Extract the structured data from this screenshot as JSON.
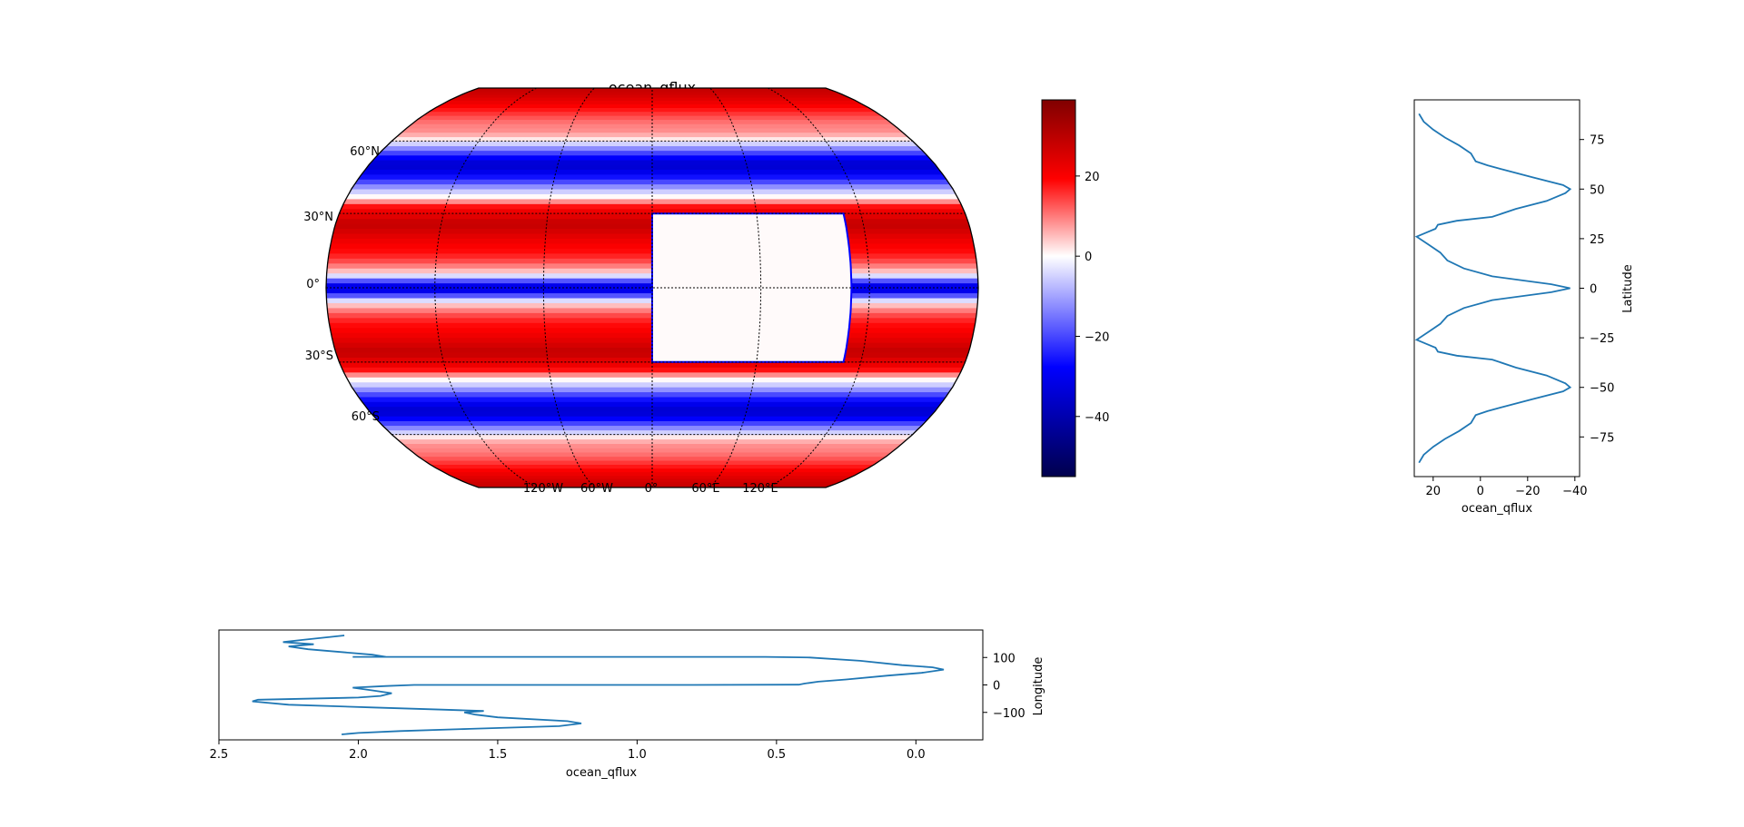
{
  "chart_data": [
    {
      "type": "heatmap",
      "title": "ocean_qflux",
      "projection": "robinson",
      "colormap": "seismic",
      "lat_ticks": [
        "60°N",
        "30°N",
        "0°",
        "30°S",
        "60°S"
      ],
      "lat_tick_values": [
        60,
        30,
        0,
        -30,
        -60
      ],
      "lon_ticks": [
        "120°W",
        "60°W",
        "0°",
        "60°E",
        "120°E"
      ],
      "lon_tick_values": [
        -120,
        -60,
        0,
        60,
        120
      ],
      "field_by_latitude": {
        "lat": [
          -88,
          -84,
          -80,
          -76,
          -72,
          -68,
          -64,
          -62,
          -60,
          -56,
          -52,
          -50,
          -48,
          -44,
          -40,
          -36,
          -34,
          -32,
          -30,
          -28,
          -26,
          -22,
          -18,
          -14,
          -10,
          -6,
          -2,
          0,
          2,
          6,
          10,
          14,
          18,
          22,
          26,
          28,
          30,
          32,
          34,
          36,
          40,
          44,
          48,
          50,
          52,
          56,
          60,
          62,
          64,
          68,
          72,
          76,
          80,
          84,
          88
        ],
        "value": [
          26,
          24,
          20,
          15,
          9,
          4,
          2,
          -3,
          -9,
          -22,
          -35,
          -38,
          -36,
          -28,
          -15,
          -5,
          10,
          18,
          19,
          23,
          27,
          22,
          17,
          14,
          7,
          -5,
          -30,
          -38,
          -30,
          -5,
          7,
          14,
          17,
          22,
          27,
          23,
          19,
          18,
          10,
          -5,
          -15,
          -28,
          -36,
          -38,
          -35,
          -22,
          -9,
          -3,
          2,
          4,
          9,
          15,
          20,
          24,
          26
        ]
      },
      "masked_region": {
        "lon": [
          0,
          110
        ],
        "lat": [
          -30,
          30
        ]
      },
      "colorbar": {
        "ticks": [
          20,
          0,
          -20,
          -40
        ],
        "range": [
          -55,
          39
        ]
      }
    },
    {
      "type": "line",
      "xlabel": "ocean_qflux",
      "ylabel": "Latitude",
      "x_axis_inverted": true,
      "xticks": [
        20,
        0,
        -20,
        -40
      ],
      "yticks": [
        75,
        50,
        25,
        0,
        -25,
        -50,
        -75
      ],
      "xlim": [
        28,
        -42
      ],
      "ylim": [
        -95,
        95
      ]
    },
    {
      "type": "line",
      "xlabel": "ocean_qflux",
      "ylabel": "Longitude",
      "x_axis_inverted": true,
      "xticks": [
        "2.5",
        "2.0",
        "1.5",
        "1.0",
        "0.5",
        "0.0"
      ],
      "xtick_values": [
        2.5,
        2.0,
        1.5,
        1.0,
        0.5,
        0.0
      ],
      "yticks": [
        100,
        0,
        -100
      ],
      "xlim": [
        2.5,
        -0.24
      ],
      "ylim": [
        -200,
        200
      ],
      "x": [
        2.06,
        2.0,
        1.85,
        1.6,
        1.28,
        1.2,
        1.25,
        1.5,
        1.58,
        1.62,
        1.55,
        1.7,
        1.95,
        2.25,
        2.38,
        2.36,
        2.0,
        1.92,
        1.88,
        1.95,
        2.02,
        1.9,
        1.8,
        1.0,
        0.8,
        0.42,
        0.4,
        0.35,
        0.25,
        0.1,
        -0.02,
        -0.1,
        -0.06,
        0.05,
        0.2,
        0.38,
        0.54,
        1.0,
        2.02,
        1.9,
        1.95,
        2.18,
        2.25,
        2.16,
        2.27,
        2.2,
        2.05
      ],
      "y": [
        -180,
        -175,
        -168,
        -160,
        -150,
        -140,
        -132,
        -118,
        -108,
        -100,
        -95,
        -90,
        -82,
        -72,
        -60,
        -54,
        -46,
        -40,
        -30,
        -20,
        -10,
        -4,
        0,
        0,
        0,
        1,
        5,
        12,
        20,
        34,
        44,
        56,
        64,
        72,
        88,
        100,
        102,
        102,
        102,
        102,
        110,
        130,
        140,
        148,
        156,
        164,
        180
      ]
    }
  ]
}
